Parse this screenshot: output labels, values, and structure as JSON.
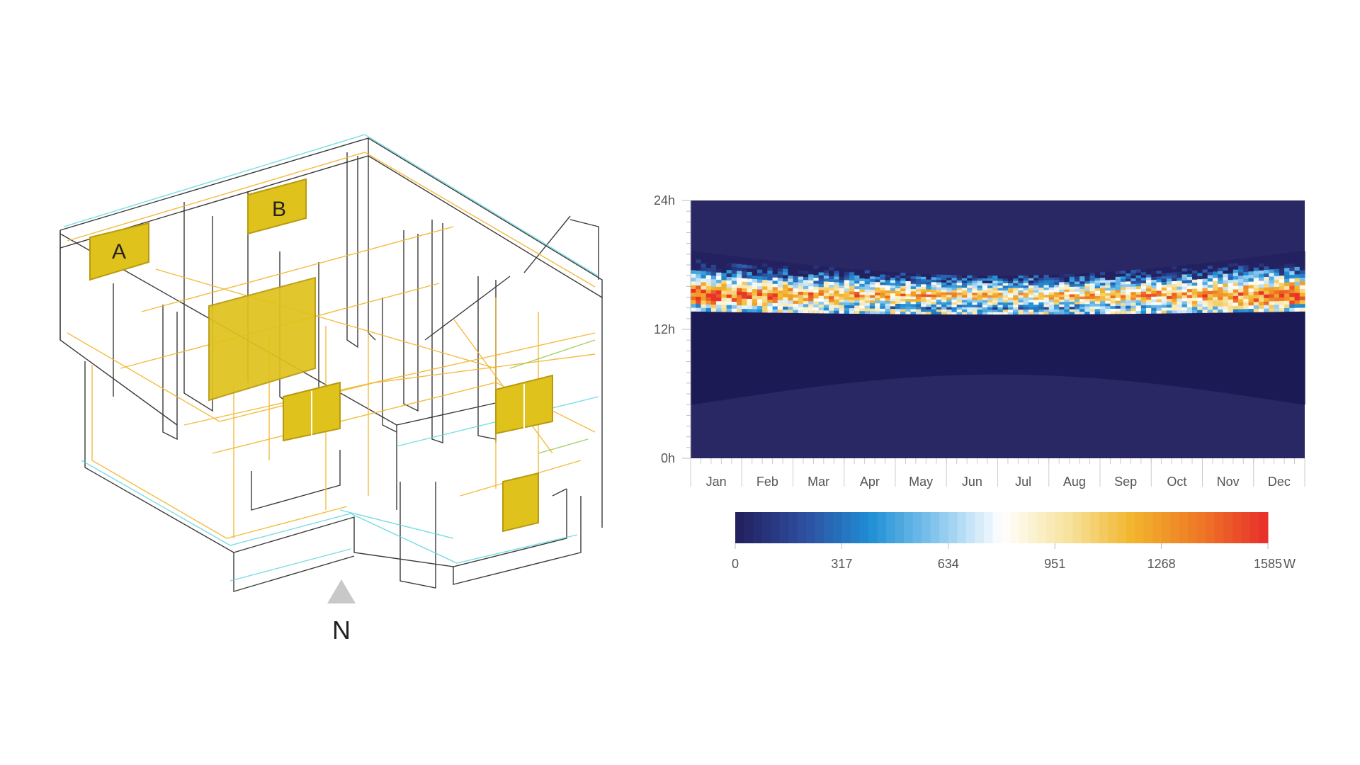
{
  "diagram": {
    "window_labels": [
      "A",
      "B"
    ],
    "north_label": "N",
    "colors": {
      "window_fill": "#e0c21c",
      "line_dark": "#3a3a3a",
      "line_yellow": "#f2b52c",
      "line_cyan": "#58d4dc",
      "line_green": "#8cc63f"
    }
  },
  "chart_data": {
    "type": "heatmap",
    "title": "",
    "xlabel": "",
    "ylabel": "",
    "y_ticks": [
      "0h",
      "12h",
      "24h"
    ],
    "ylim": [
      0,
      24
    ],
    "x_categories": [
      "Jan",
      "Feb",
      "Mar",
      "Apr",
      "May",
      "Jun",
      "Jul",
      "Aug",
      "Sep",
      "Oct",
      "Nov",
      "Dec"
    ],
    "value_range": [
      0,
      1585
    ],
    "colorbar_ticks": [
      "0",
      "317",
      "634",
      "951",
      "1268",
      "1585"
    ],
    "colorbar_unit": "W",
    "colors": {
      "night": "#2a2864",
      "shade": "#1c1a54",
      "scale": [
        "#23215f",
        "#2e4fa0",
        "#1f8fd4",
        "#86c6ee",
        "#ffffff",
        "#f7e3a0",
        "#f2b52c",
        "#ef7a26",
        "#e8322a"
      ]
    },
    "sunlit_band_hours": {
      "start_month_hours": [
        13.7,
        19.3
      ],
      "mid_year_hours": [
        13.0,
        17.0
      ],
      "peak_hours": [
        14.2,
        16.2
      ]
    },
    "shade_band_hours": {
      "jan_start": 5.0,
      "jun_start": 7.8,
      "dec_start": 5.0,
      "end": 13.7
    }
  }
}
